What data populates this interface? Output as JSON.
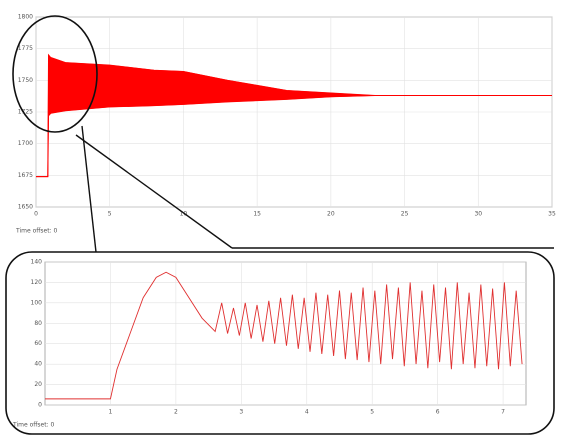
{
  "chart_data": [
    {
      "type": "area",
      "annotation": "Time offset: 0",
      "color": "#ff0000",
      "x": [
        0,
        0.8,
        0.85,
        1,
        2,
        5,
        8,
        10,
        13,
        15,
        17,
        20,
        23,
        35
      ],
      "series": [
        {
          "values": [
            1674,
            1674,
            1770,
            1768,
            1764,
            1762,
            1758,
            1757,
            1750,
            1746,
            1742,
            1740,
            1738,
            1738
          ]
        },
        {
          "values": [
            1674,
            1674,
            1722,
            1724,
            1726,
            1729,
            1730,
            1731,
            1733,
            1734,
            1735,
            1737,
            1738,
            1738
          ]
        }
      ],
      "xlim": [
        0,
        35
      ],
      "xticks": [
        0,
        5,
        10,
        15,
        20,
        25,
        30,
        35
      ],
      "ylim": [
        1650,
        1800
      ],
      "yticks": [
        1650,
        1675,
        1700,
        1725,
        1750,
        1775,
        1800
      ],
      "grid": true
    },
    {
      "type": "line",
      "annotation": "Time offset: 0",
      "color": "#e03030",
      "x": [
        0,
        1,
        1.1,
        1.3,
        1.5,
        1.7,
        1.85,
        2.0,
        2.2,
        2.4,
        2.6,
        2.7,
        2.79,
        2.88,
        2.97,
        3.06,
        3.15,
        3.24,
        3.33,
        3.42,
        3.51,
        3.6,
        3.69,
        3.78,
        3.87,
        3.96,
        4.05,
        4.14,
        4.23,
        4.32,
        4.41,
        4.5,
        4.59,
        4.68,
        4.77,
        4.86,
        4.95,
        5.04,
        5.13,
        5.22,
        5.31,
        5.4,
        5.49,
        5.58,
        5.67,
        5.76,
        5.85,
        5.94,
        6.03,
        6.12,
        6.21,
        6.3,
        6.39,
        6.48,
        6.57,
        6.66,
        6.75,
        6.84,
        6.93,
        7.02,
        7.11,
        7.2,
        7.29
      ],
      "values": [
        6,
        6,
        35,
        70,
        105,
        125,
        130,
        125,
        105,
        85,
        72,
        100,
        70,
        95,
        68,
        100,
        65,
        98,
        62,
        102,
        60,
        105,
        58,
        108,
        55,
        105,
        52,
        110,
        50,
        108,
        48,
        112,
        45,
        110,
        44,
        115,
        42,
        112,
        40,
        118,
        45,
        115,
        38,
        120,
        40,
        112,
        36,
        118,
        42,
        115,
        35,
        120,
        40,
        110,
        36,
        118,
        38,
        114,
        35,
        120,
        38,
        112,
        40
      ],
      "xlim": [
        0,
        7.35
      ],
      "xticks": [
        1,
        2,
        3,
        4,
        5,
        6,
        7
      ],
      "ylim": [
        0,
        140
      ],
      "yticks": [
        0,
        20,
        40,
        60,
        80,
        100,
        120,
        140
      ],
      "grid": true
    }
  ]
}
